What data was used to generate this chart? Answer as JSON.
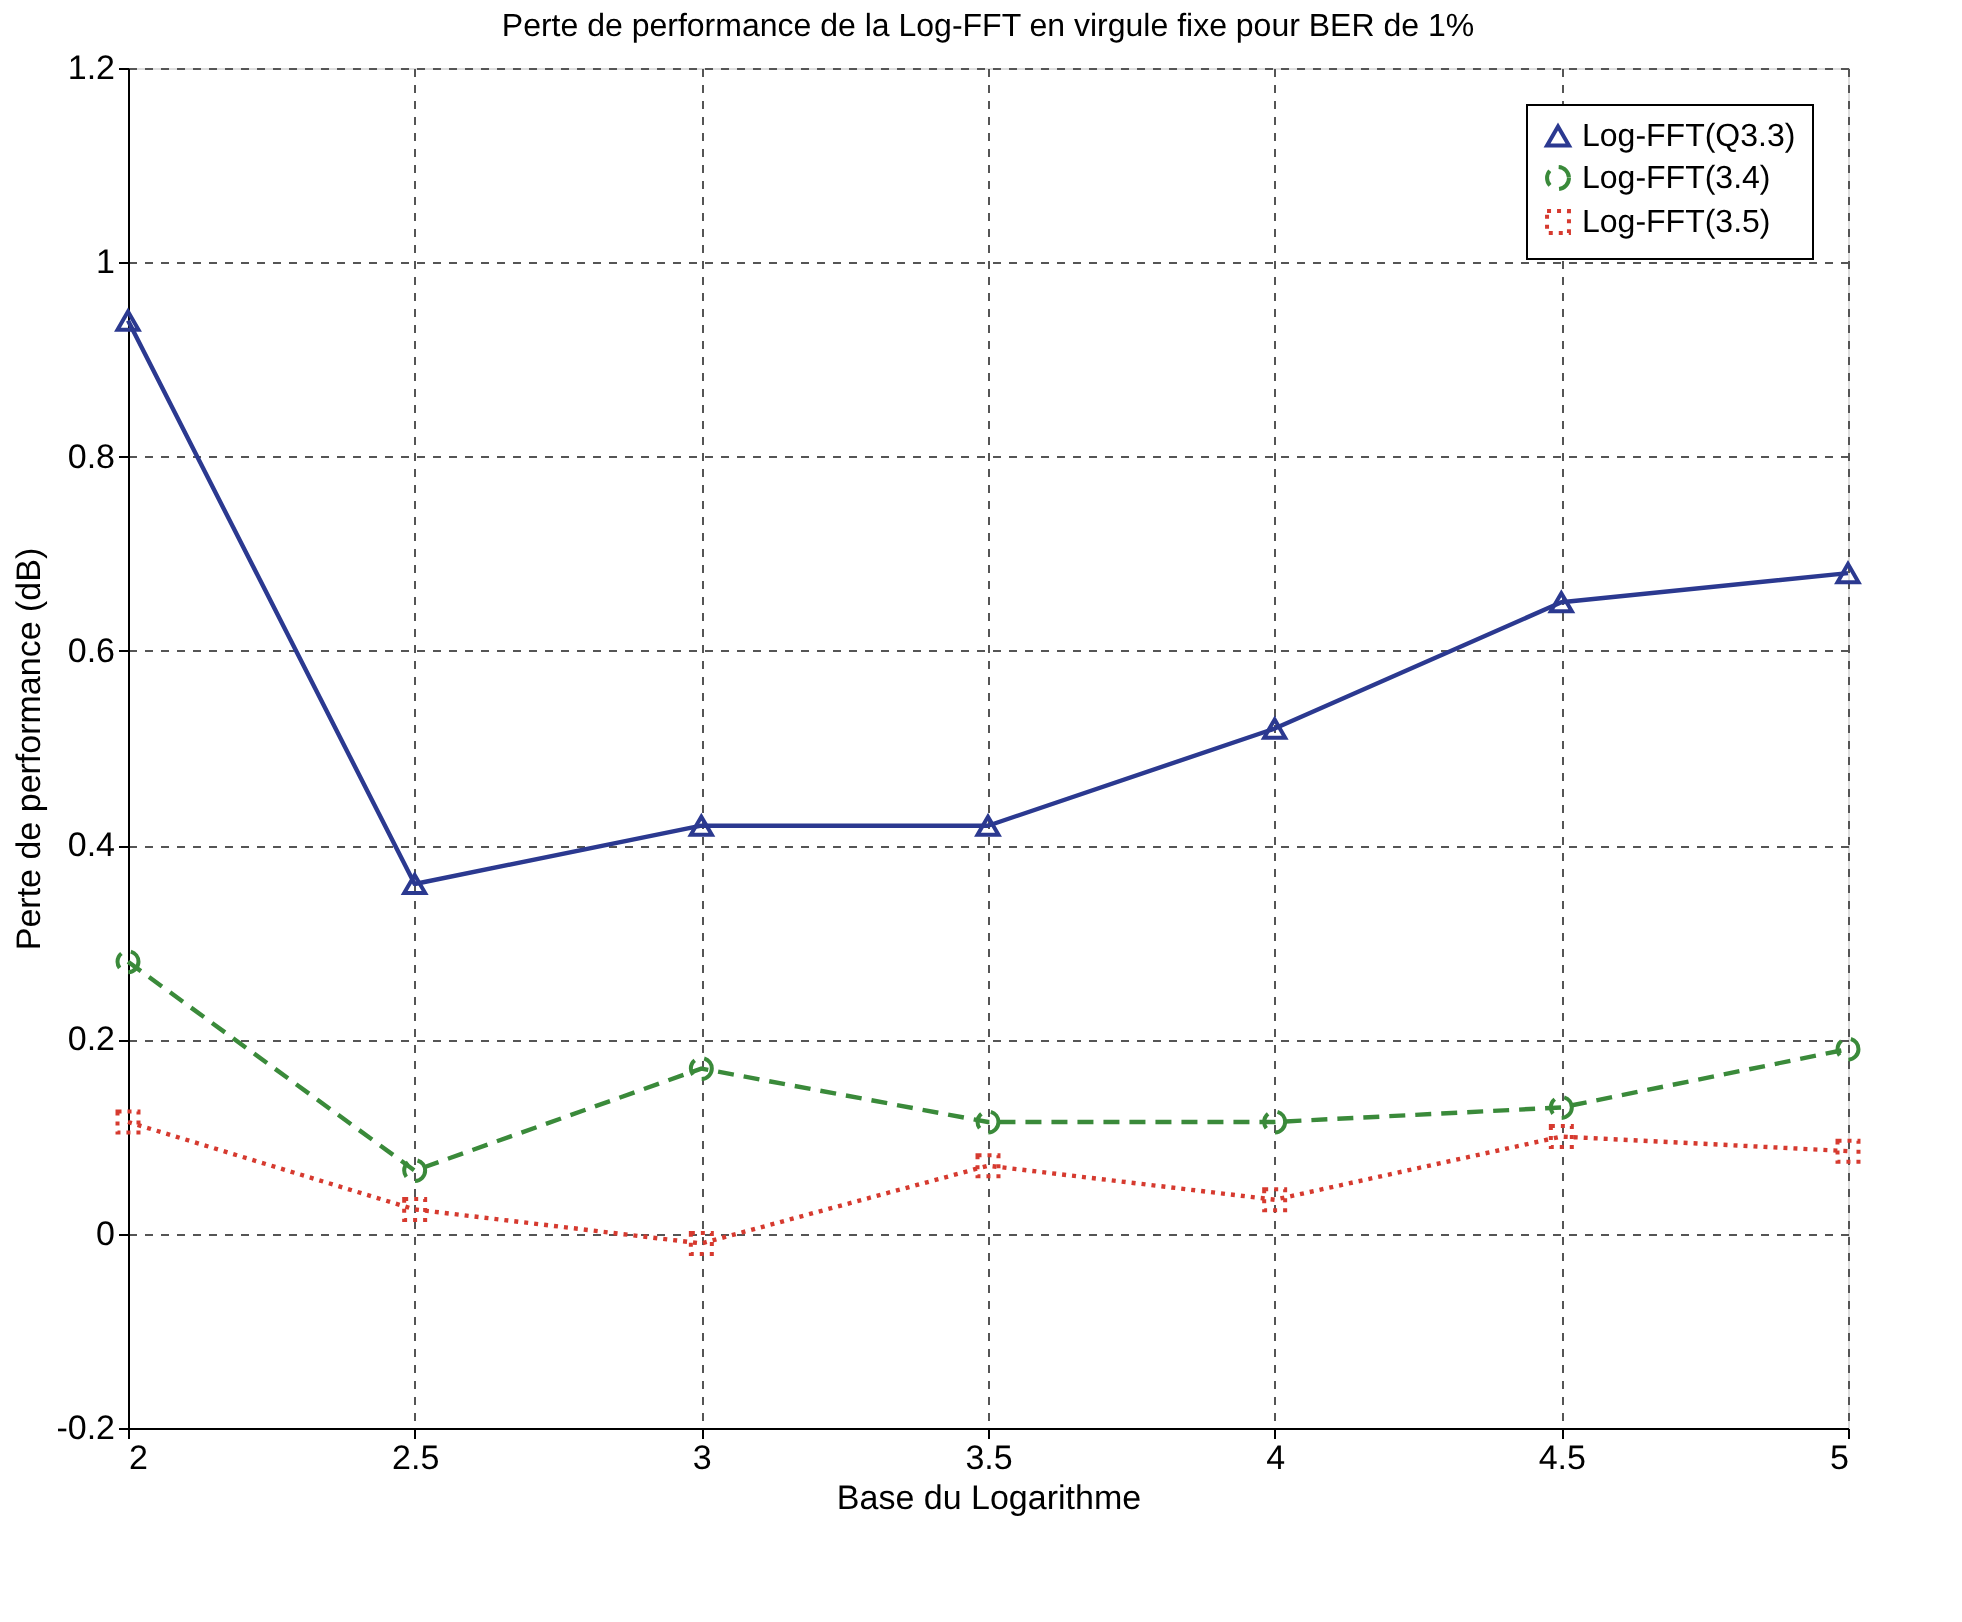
{
  "chart_data": {
    "type": "line",
    "title": "Perte de performance de la Log-FFT en virgule fixe pour BER de 1%",
    "xlabel": "Base du Logarithme",
    "ylabel": "Perte de performance (dB)",
    "x": [
      2,
      2.5,
      3,
      3.5,
      4,
      4.5,
      5
    ],
    "series": [
      {
        "name": "Log-FFT(Q3.3)",
        "color": "#2b3990",
        "marker": "triangle",
        "line_style": "solid",
        "values": [
          0.94,
          0.36,
          0.42,
          0.42,
          0.52,
          0.65,
          0.68
        ]
      },
      {
        "name": "Log-FFT(3.4)",
        "color": "#3a8a3a",
        "marker": "circle",
        "line_style": "dashed",
        "values": [
          0.28,
          0.065,
          0.17,
          0.115,
          0.115,
          0.13,
          0.19
        ]
      },
      {
        "name": "Log-FFT(3.5)",
        "color": "#d63a2f",
        "marker": "square",
        "line_style": "dotted",
        "values": [
          0.115,
          0.025,
          -0.01,
          0.07,
          0.035,
          0.1,
          0.085
        ]
      }
    ],
    "xlim": [
      2,
      5
    ],
    "xticks": [
      2,
      2.5,
      3,
      3.5,
      4,
      4.5,
      5
    ],
    "ylim": [
      -0.2,
      1.2
    ],
    "yticks": [
      -0.2,
      0,
      0.2,
      0.4,
      0.6,
      0.8,
      1,
      1.2
    ],
    "grid": true,
    "legend": "top right"
  }
}
